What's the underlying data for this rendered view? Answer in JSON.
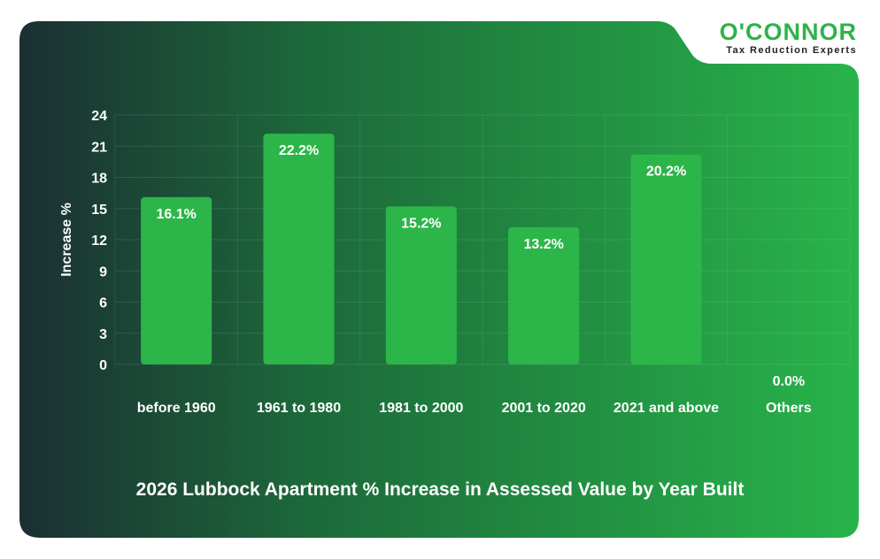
{
  "brand": {
    "name": "O'CONNOR",
    "tagline": "Tax Reduction Experts"
  },
  "colors": {
    "bar": "#2cb649",
    "background_left": "#1c3134",
    "background_right": "#27b248",
    "text": "#ffffff"
  },
  "chart_data": {
    "type": "bar",
    "title": "2026 Lubbock Apartment % Increase in Assessed Value by Year Built",
    "xlabel": "",
    "ylabel": "Increase %",
    "ylim": [
      0,
      24
    ],
    "yticks": [
      0,
      3,
      6,
      9,
      12,
      15,
      18,
      21,
      24
    ],
    "grid": true,
    "categories": [
      "before 1960",
      "1961 to 1980",
      "1981 to 2000",
      "2001 to 2020",
      "2021 and above",
      "Others"
    ],
    "values": [
      16.1,
      22.2,
      15.2,
      13.2,
      20.2,
      0.0
    ],
    "data_labels": [
      "16.1%",
      "22.2%",
      "15.2%",
      "13.2%",
      "20.2%",
      "0.0%"
    ]
  }
}
